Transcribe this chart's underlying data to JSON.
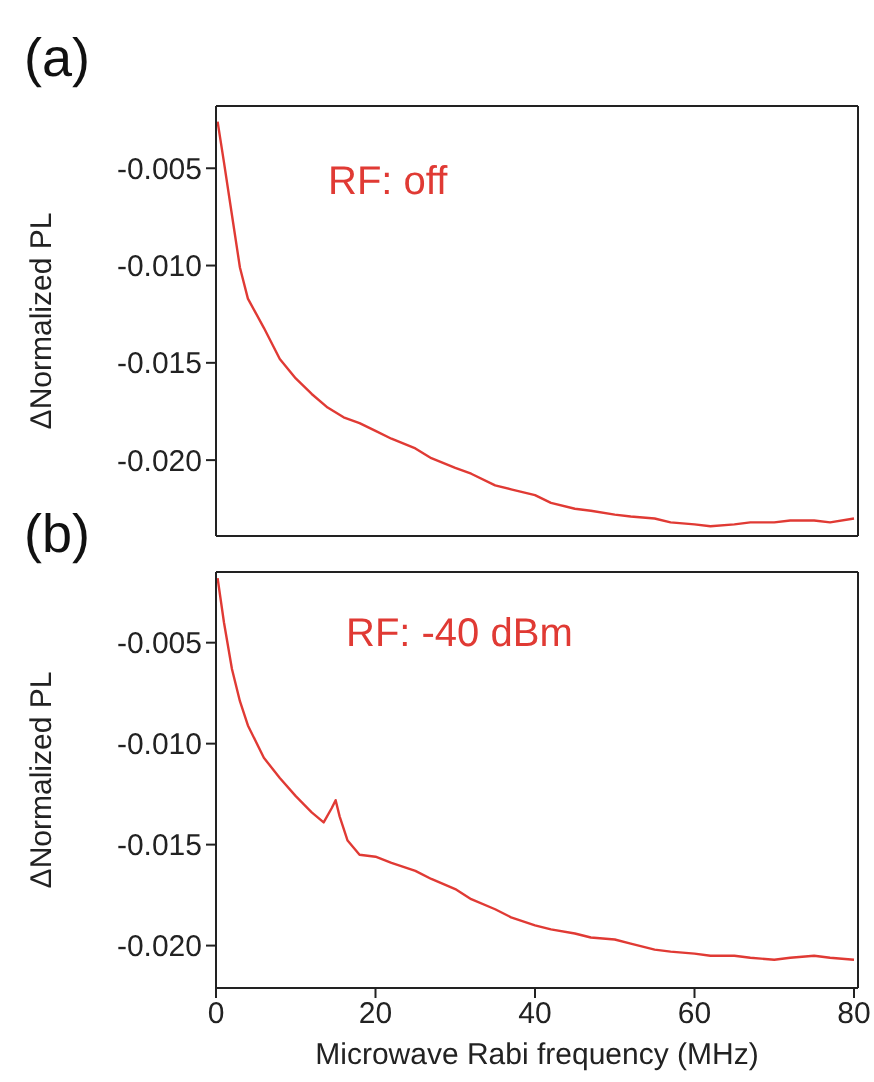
{
  "chart_data": [
    {
      "type": "line",
      "title": "(a)",
      "ylabel": "ΔNormalized PL",
      "annotations": [
        "RF: off"
      ],
      "xlim": [
        0,
        80.5
      ],
      "xticks": [
        0,
        20,
        40,
        60,
        80
      ],
      "ylim": [
        -0.0239,
        -0.0018
      ],
      "yticks": [
        {
          "value": -0.005,
          "label": "-0.005"
        },
        {
          "value": -0.01,
          "label": "-0.010"
        },
        {
          "value": -0.015,
          "label": "-0.015"
        },
        {
          "value": -0.02,
          "label": "-0.020"
        }
      ],
      "tick_labels": "y",
      "marker": "none",
      "line_style": "solid",
      "series": [
        {
          "color": "#e03a34",
          "x": [
            0.2,
            1,
            2,
            3,
            4,
            6,
            8,
            10,
            12,
            14,
            16,
            18,
            20,
            22,
            25,
            27,
            30,
            32,
            35,
            37,
            40,
            42,
            45,
            47,
            50,
            52,
            55,
            57,
            60,
            62,
            65,
            67,
            70,
            72,
            75,
            77,
            80
          ],
          "values": [
            -0.0026,
            -0.0047,
            -0.0074,
            -0.0101,
            -0.0117,
            -0.0132,
            -0.0148,
            -0.0158,
            -0.0166,
            -0.0173,
            -0.0178,
            -0.0181,
            -0.0185,
            -0.0189,
            -0.0194,
            -0.0199,
            -0.0204,
            -0.0207,
            -0.0213,
            -0.0215,
            -0.0218,
            -0.0222,
            -0.0225,
            -0.0226,
            -0.0228,
            -0.0229,
            -0.023,
            -0.0232,
            -0.0233,
            -0.0234,
            -0.0233,
            -0.0232,
            -0.0232,
            -0.0231,
            -0.0231,
            -0.0232,
            -0.023
          ]
        }
      ]
    },
    {
      "type": "line",
      "title": "(b)",
      "xlabel": "Microwave Rabi frequency (MHz)",
      "ylabel": "ΔNormalized PL",
      "annotations": [
        "RF: -40 dBm"
      ],
      "xlim": [
        0,
        80.5
      ],
      "xticks": [
        0,
        20,
        40,
        60,
        80
      ],
      "ylim": [
        -0.0221,
        -0.0015
      ],
      "yticks": [
        {
          "value": -0.005,
          "label": "-0.005"
        },
        {
          "value": -0.01,
          "label": "-0.010"
        },
        {
          "value": -0.015,
          "label": "-0.015"
        },
        {
          "value": -0.02,
          "label": "-0.020"
        }
      ],
      "marker": "none",
      "line_style": "solid",
      "series": [
        {
          "color": "#e03a34",
          "x": [
            0.2,
            1,
            2,
            3,
            4,
            6,
            8,
            10,
            12,
            13.5,
            14.5,
            15,
            15.5,
            16.5,
            18,
            20,
            22,
            25,
            27,
            30,
            32,
            35,
            37,
            40,
            42,
            45,
            47,
            50,
            52,
            55,
            57,
            60,
            62,
            65,
            67,
            70,
            72,
            75,
            77,
            80
          ],
          "values": [
            -0.0018,
            -0.004,
            -0.0063,
            -0.0079,
            -0.0091,
            -0.0107,
            -0.0117,
            -0.0126,
            -0.0134,
            -0.0139,
            -0.0132,
            -0.0128,
            -0.0136,
            -0.0148,
            -0.0155,
            -0.0156,
            -0.0159,
            -0.0163,
            -0.0167,
            -0.0172,
            -0.0177,
            -0.0182,
            -0.0186,
            -0.019,
            -0.0192,
            -0.0194,
            -0.0196,
            -0.0197,
            -0.0199,
            -0.0202,
            -0.0203,
            -0.0204,
            -0.0205,
            -0.0205,
            -0.0206,
            -0.0207,
            -0.0206,
            -0.0205,
            -0.0206,
            -0.0207
          ]
        }
      ]
    }
  ]
}
